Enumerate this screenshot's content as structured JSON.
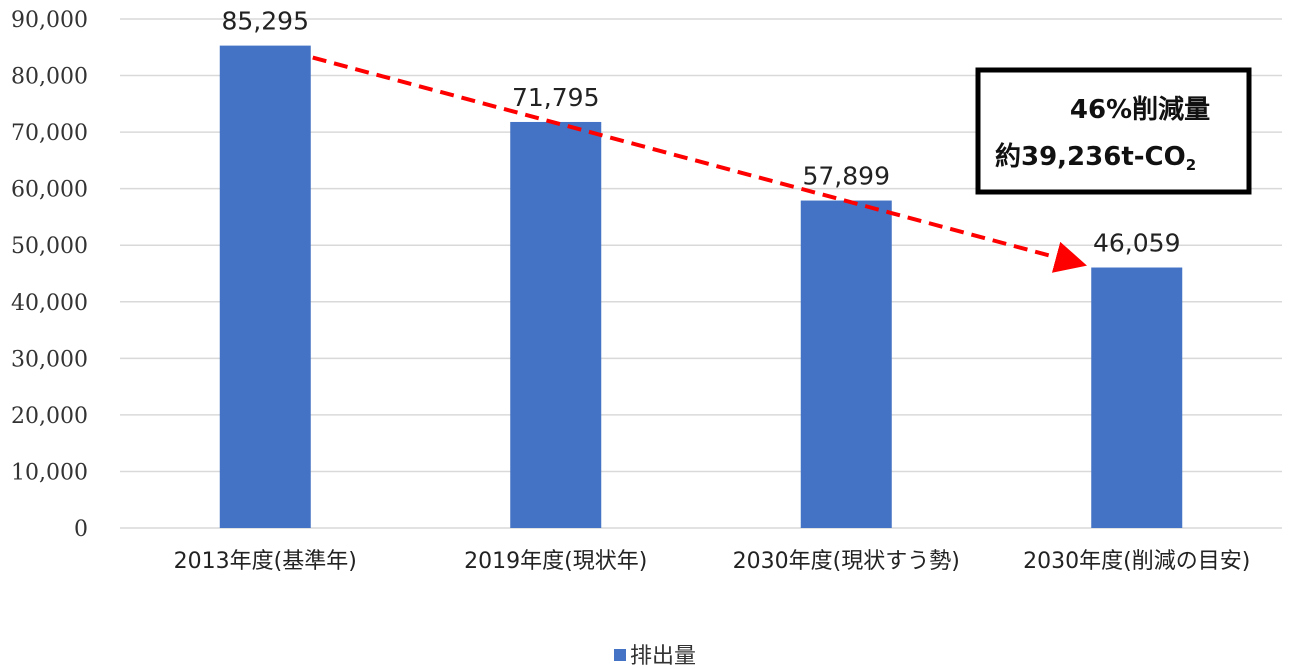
{
  "chart_data": {
    "type": "bar",
    "categories": [
      "2013年度(基準年)",
      "2019年度(現状年)",
      "2030年度(現状すう勢)",
      "2030年度(削減の目安)"
    ],
    "series": [
      {
        "name": "排出量",
        "values": [
          85295,
          71795,
          57899,
          46059
        ]
      }
    ],
    "data_labels": [
      "85,295",
      "71,795",
      "57,899",
      "46,059"
    ],
    "yticks": [
      "0",
      "10,000",
      "20,000",
      "30,000",
      "40,000",
      "50,000",
      "60,000",
      "70,000",
      "80,000",
      "90,000"
    ],
    "ylim": [
      0,
      90000
    ],
    "grid": true,
    "legend_position": "bottom",
    "bar_color": "#4472c4",
    "annotation": {
      "line1": "46%削減量",
      "line2_prefix": "約39,236t-CO",
      "line2_subscript": "2",
      "arrow_from_category": 0,
      "arrow_to_category": 3,
      "arrow_color": "#ff0000"
    }
  }
}
